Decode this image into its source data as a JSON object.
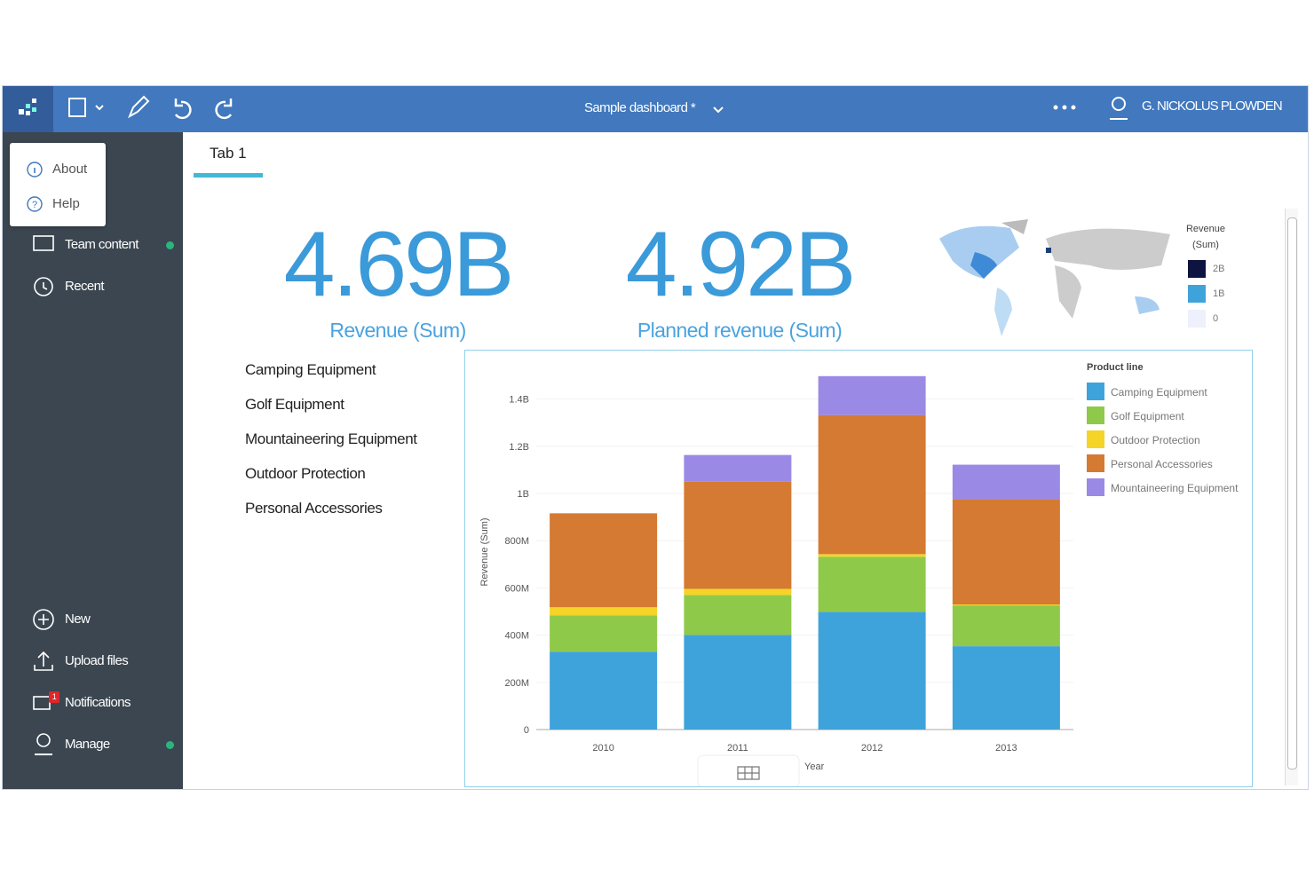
{
  "top_bar": {
    "dashboard_title": "Sample dashboard *",
    "user": "G. NICKOLUS PLOWDEN"
  },
  "menu_popup": [
    "About",
    "Help"
  ],
  "sidebar": {
    "top_items": [
      "Team content",
      "Recent"
    ],
    "bottom_items": [
      "New",
      "Upload files",
      "Notifications",
      "Manage"
    ],
    "notification_count": "1"
  },
  "tab": "Tab 1",
  "kpis": [
    {
      "value": "4.69B",
      "label": "Revenue (Sum)"
    },
    {
      "value": "4.92B",
      "label": "Planned revenue (Sum)"
    }
  ],
  "map_legend": {
    "title": [
      "Revenue",
      "(Sum)"
    ],
    "labels": [
      "2B",
      "1B",
      "0"
    ]
  },
  "product_list": [
    "Camping Equipment",
    "Golf Equipment",
    "Mountaineering Equipment",
    "Outdoor Protection",
    "Personal Accessories"
  ],
  "chart_data": {
    "type": "bar",
    "stacked": true,
    "xlabel": "Year",
    "ylabel": "Revenue (Sum)",
    "legend_title": "Product line",
    "legend": "right",
    "categories": [
      "2010",
      "2011",
      "2012",
      "2013"
    ],
    "series": [
      {
        "name": "Camping Equipment",
        "color": "#3fa3db",
        "values": [
          330000000,
          401000000,
          499000000,
          353000000
        ]
      },
      {
        "name": "Golf Equipment",
        "color": "#8fc94a",
        "values": [
          154000000,
          169000000,
          233000000,
          173000000
        ]
      },
      {
        "name": "Outdoor Protection",
        "color": "#f5d327",
        "values": [
          34000000,
          26000000,
          11000000,
          4000000
        ]
      },
      {
        "name": "Personal Accessories",
        "color": "#d57a32",
        "values": [
          398000000,
          454000000,
          589000000,
          446000000
        ]
      },
      {
        "name": "Mountaineering Equipment",
        "color": "#9b89e6",
        "values": [
          0,
          113000000,
          165000000,
          146000000
        ]
      }
    ],
    "ylim": [
      0,
      1500000000
    ],
    "yticks": [
      0,
      {
        "value": 200000000,
        "label": "200M"
      },
      {
        "value": 400000000,
        "label": "400M"
      },
      {
        "value": 600000000,
        "label": "600M"
      },
      {
        "value": 800000000,
        "label": "800M"
      },
      {
        "value": 1000000000,
        "label": "1B"
      },
      {
        "value": 1200000000,
        "label": "1.2B"
      },
      {
        "value": 1400000000,
        "label": "1.4B"
      }
    ]
  }
}
